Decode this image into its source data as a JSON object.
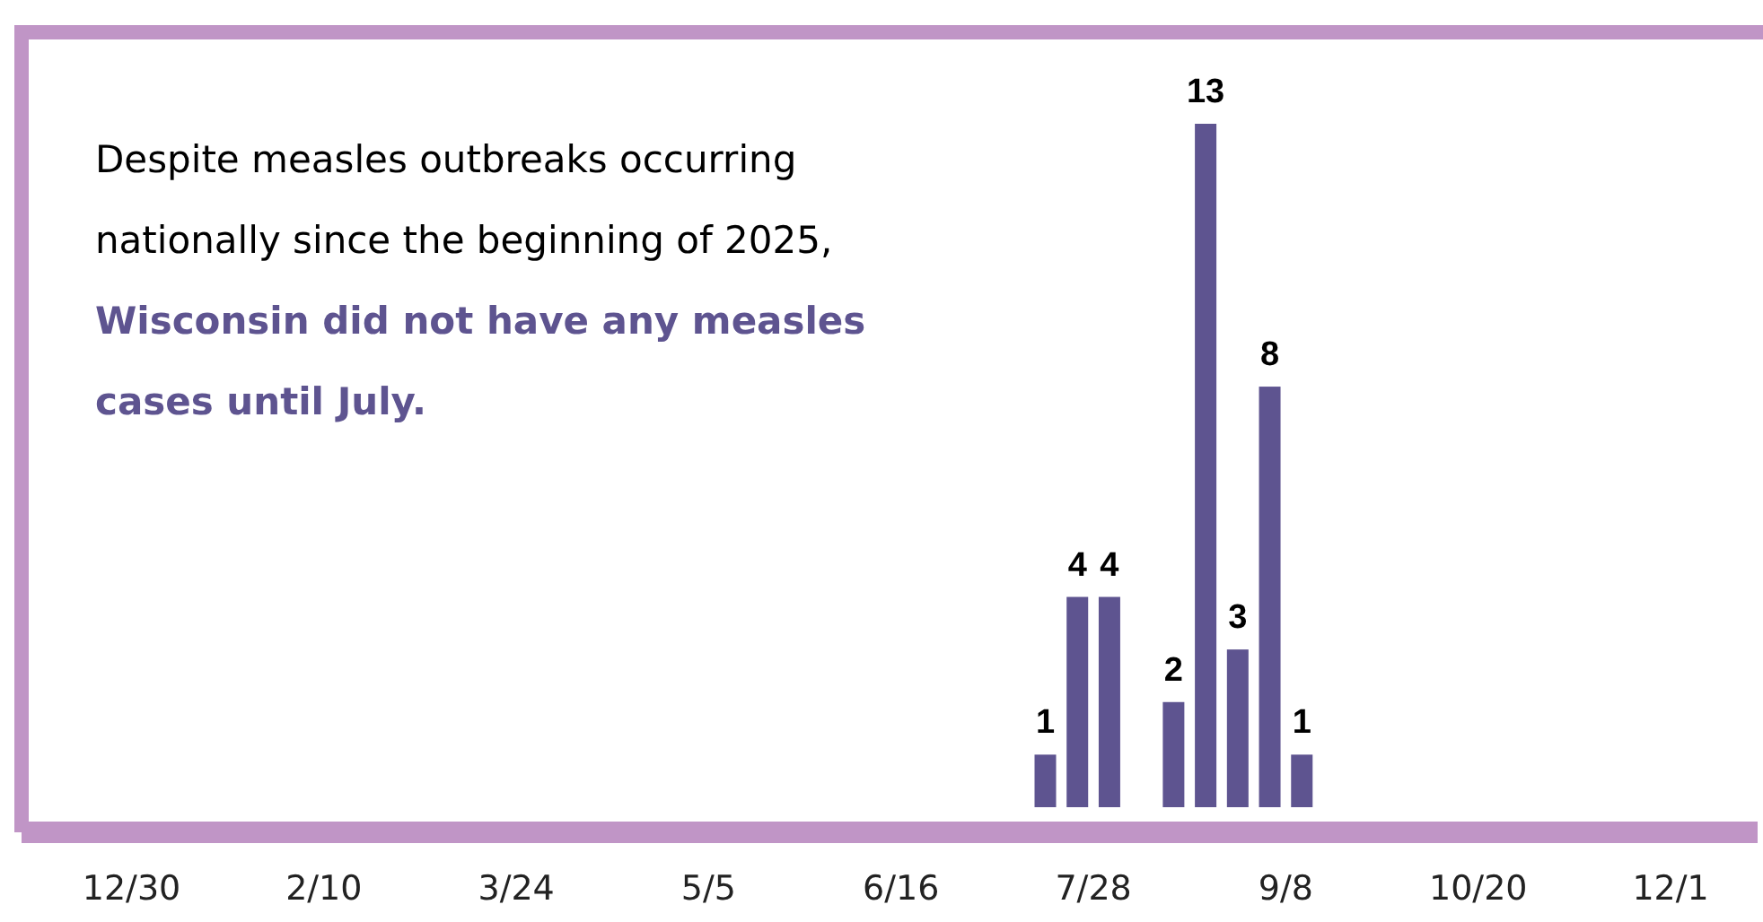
{
  "chart_data": {
    "type": "bar",
    "x": [
      "2025-07-17T12:00",
      "2025-07-24T12:00",
      "2025-07-31T12:00",
      "2025-08-14T12:00",
      "2025-08-21T12:00",
      "2025-08-28T12:00",
      "2025-09-04T12:00",
      "2025-09-11T12:00"
    ],
    "values": [
      1,
      4,
      4,
      2,
      13,
      3,
      8,
      1
    ],
    "color": "#5e5490",
    "data_labels": true,
    "ylim": [
      0,
      13
    ],
    "xlim": [
      "2024-12-06",
      "2025-12-20"
    ],
    "xticks": [
      {
        "value": "2024-12-30",
        "label": "12/30"
      },
      {
        "value": "2025-02-10",
        "label": "2/10"
      },
      {
        "value": "2025-03-24",
        "label": "3/24"
      },
      {
        "value": "2025-05-05",
        "label": "5/5"
      },
      {
        "value": "2025-06-16",
        "label": "6/16"
      },
      {
        "value": "2025-07-28",
        "label": "7/28"
      },
      {
        "value": "2025-09-08",
        "label": "9/8"
      },
      {
        "value": "2025-10-20",
        "label": "10/20"
      },
      {
        "value": "2025-12-01",
        "label": "12/1"
      }
    ],
    "tick_labels": "x",
    "grid": false,
    "annotations": [
      "Despite measles outbreaks occurring nationally since the beginning of 2025,",
      "Wisconsin did not have any measles cases until July."
    ]
  }
}
